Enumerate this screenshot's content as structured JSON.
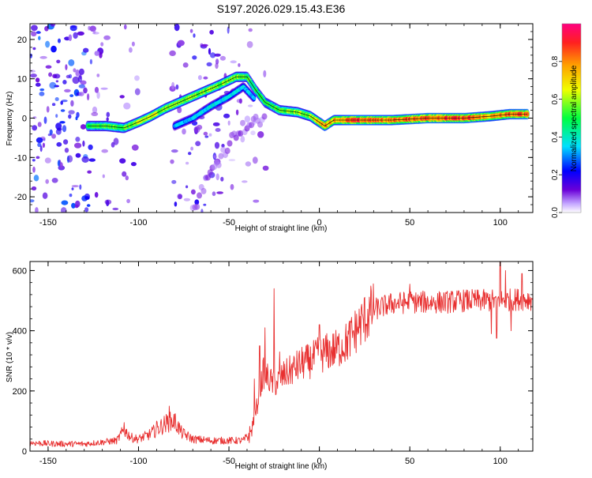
{
  "figure_title": "S197.2026.029.15.43.E36",
  "chart_data": [
    {
      "type": "heatmap",
      "title": "S197.2026.029.15.43.E36",
      "xlabel": "Height of straight line (km)",
      "ylabel": "Frequency (Hz)",
      "xlim": [
        -160,
        118
      ],
      "ylim": [
        -24,
        24
      ],
      "x_ticks": [
        -150,
        -100,
        -50,
        0,
        50,
        100
      ],
      "x_tick_labels": [
        "-150",
        "-100",
        "-50",
        "0",
        "50",
        "100"
      ],
      "y_ticks": [
        -20,
        -10,
        0,
        10,
        20
      ],
      "y_tick_labels": [
        "-20",
        "-10",
        "0",
        "10",
        "20"
      ],
      "colorbar": {
        "label": "Normalized spectral amplitude",
        "range": [
          0,
          1
        ],
        "ticks": [
          0.0,
          0.2,
          0.4,
          0.6,
          0.8
        ],
        "tick_labels": [
          "0.0",
          "0.2",
          "0.4",
          "0.6",
          "0.8"
        ],
        "colors": [
          "#ffffff",
          "#b48cff",
          "#6a00d8",
          "#0000ff",
          "#00e0ff",
          "#00ff40",
          "#f0ff00",
          "#ffa000",
          "#ff2020",
          "#ff0080"
        ]
      },
      "main_track": [
        {
          "x": -128,
          "f": -2,
          "a": 0.45
        },
        {
          "x": -118,
          "f": -2,
          "a": 0.5
        },
        {
          "x": -108,
          "f": -2.5,
          "a": 0.5
        },
        {
          "x": -100,
          "f": -1,
          "a": 0.55
        },
        {
          "x": -93,
          "f": 0.5,
          "a": 0.6
        },
        {
          "x": -85,
          "f": 2.5,
          "a": 0.55
        },
        {
          "x": -75,
          "f": 4.5,
          "a": 0.55
        },
        {
          "x": -65,
          "f": 6.5,
          "a": 0.55
        },
        {
          "x": -55,
          "f": 8.5,
          "a": 0.55
        },
        {
          "x": -46,
          "f": 10.5,
          "a": 0.55
        },
        {
          "x": -40,
          "f": 10.5,
          "a": 0.5
        },
        {
          "x": -35,
          "f": 7,
          "a": 0.45
        },
        {
          "x": -30,
          "f": 4,
          "a": 0.45
        },
        {
          "x": -22,
          "f": 2,
          "a": 0.5
        },
        {
          "x": -12,
          "f": 1.5,
          "a": 0.55
        },
        {
          "x": -5,
          "f": 0.5,
          "a": 0.55
        },
        {
          "x": 3,
          "f": -2,
          "a": 0.75
        },
        {
          "x": 8,
          "f": -0.5,
          "a": 0.7
        },
        {
          "x": 20,
          "f": -0.5,
          "a": 0.8
        },
        {
          "x": 40,
          "f": -0.5,
          "a": 0.75
        },
        {
          "x": 60,
          "f": 0,
          "a": 0.8
        },
        {
          "x": 80,
          "f": 0,
          "a": 0.8
        },
        {
          "x": 95,
          "f": 0.5,
          "a": 0.7
        },
        {
          "x": 105,
          "f": 1,
          "a": 0.75
        },
        {
          "x": 115,
          "f": 1,
          "a": 0.8
        }
      ],
      "secondary_track": [
        {
          "x": -80,
          "f": -2,
          "a": 0.3
        },
        {
          "x": -70,
          "f": 0,
          "a": 0.32
        },
        {
          "x": -60,
          "f": 3,
          "a": 0.35
        },
        {
          "x": -50,
          "f": 5.5,
          "a": 0.35
        },
        {
          "x": -42,
          "f": 8,
          "a": 0.35
        },
        {
          "x": -36,
          "f": 5,
          "a": 0.3
        }
      ],
      "faint_track": [
        {
          "x": -70,
          "f": -24,
          "a": 0.08
        },
        {
          "x": -65,
          "f": -18,
          "a": 0.09
        },
        {
          "x": -55,
          "f": -10,
          "a": 0.1
        },
        {
          "x": -45,
          "f": -3,
          "a": 0.1
        },
        {
          "x": -30,
          "f": 0,
          "a": 0.08
        }
      ],
      "noise_regions": [
        {
          "x_min": -160,
          "x_max": -125,
          "density": 0.9,
          "level": 0.25
        },
        {
          "x_min": -125,
          "x_max": -100,
          "density": 0.35,
          "level": 0.15
        },
        {
          "x_min": -82,
          "x_max": -50,
          "density": 0.55,
          "level": 0.18
        },
        {
          "x_min": -50,
          "x_max": -28,
          "density": 0.25,
          "level": 0.1
        }
      ]
    },
    {
      "type": "line",
      "xlabel": "Height of straight line (km)",
      "ylabel": "SNR (10 * v/v)",
      "xlim": [
        -160,
        118
      ],
      "ylim": [
        0,
        630
      ],
      "x_ticks": [
        -150,
        -100,
        -50,
        0,
        50,
        100
      ],
      "x_tick_labels": [
        "-150",
        "-100",
        "-50",
        "0",
        "50",
        "100"
      ],
      "y_ticks": [
        0,
        200,
        400,
        600
      ],
      "y_tick_labels": [
        "0",
        "200",
        "400",
        "600"
      ],
      "color": "#e83030",
      "series": [
        {
          "name": "SNR",
          "x": [
            -160,
            -150,
            -140,
            -130,
            -120,
            -112,
            -108,
            -104,
            -100,
            -94,
            -88,
            -84,
            -80,
            -76,
            -70,
            -60,
            -50,
            -42,
            -38,
            -35,
            -33,
            -31,
            -28,
            -25,
            -20,
            -15,
            -10,
            -5,
            0,
            5,
            10,
            15,
            20,
            25,
            30,
            35,
            40,
            50,
            60,
            70,
            80,
            90,
            100,
            110,
            118
          ],
          "values": [
            28,
            25,
            24,
            24,
            30,
            35,
            70,
            45,
            40,
            55,
            80,
            95,
            100,
            60,
            40,
            35,
            35,
            35,
            60,
            130,
            200,
            260,
            240,
            220,
            250,
            270,
            290,
            300,
            320,
            330,
            340,
            360,
            400,
            440,
            470,
            480,
            490,
            495,
            495,
            495,
            500,
            500,
            500,
            505,
            505
          ]
        }
      ],
      "spikes": [
        {
          "x": -108,
          "v": 95
        },
        {
          "x": -90,
          "v": 100
        },
        {
          "x": -83,
          "v": 150
        },
        {
          "x": -36,
          "v": 240
        },
        {
          "x": -33,
          "v": 350
        },
        {
          "x": -30,
          "v": 410
        },
        {
          "x": -25,
          "v": 540
        },
        {
          "x": -22,
          "v": 330
        },
        {
          "x": 0,
          "v": 420
        },
        {
          "x": 50,
          "v": 555
        },
        {
          "x": 98,
          "v": 575
        },
        {
          "x": 100,
          "v": 630
        },
        {
          "x": 103,
          "v": 600
        },
        {
          "x": 112,
          "v": 590
        }
      ],
      "dips": [
        {
          "x": 95,
          "v": 390
        },
        {
          "x": 98,
          "v": 375
        },
        {
          "x": 106,
          "v": 400
        }
      ]
    }
  ]
}
